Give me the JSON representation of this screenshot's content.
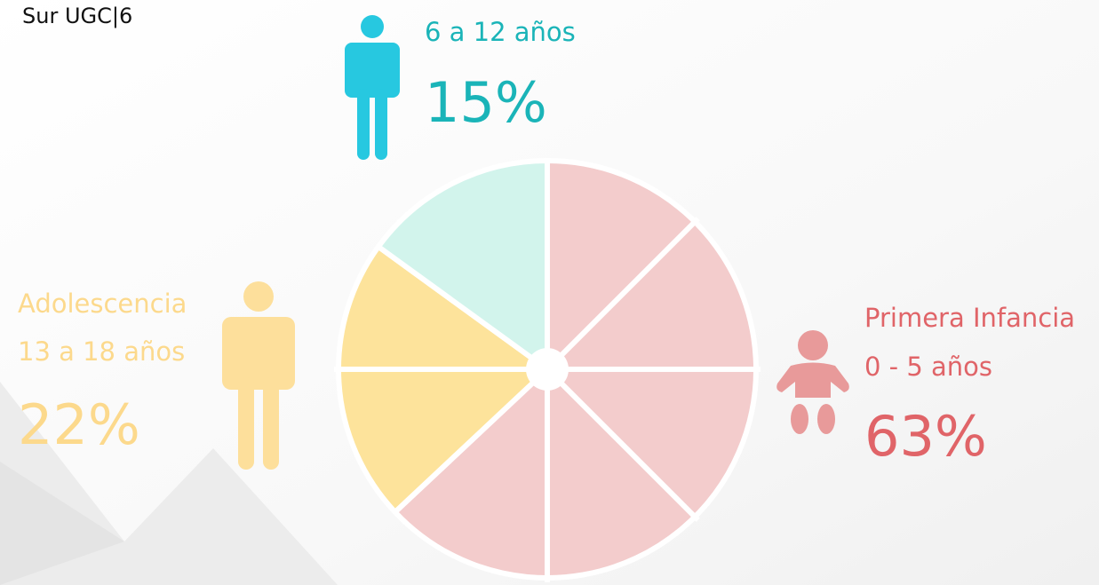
{
  "chart_data": {
    "type": "pie",
    "title": "Sur UGC|6",
    "labels": [
      [
        "Primera Infancia",
        "0 - 5 años"
      ],
      [
        "Adolescencia",
        "13 a 18 años"
      ],
      [
        "6 a 12 años"
      ]
    ],
    "values": [
      63,
      22,
      15
    ],
    "value_labels": [
      "63%",
      "22%",
      "15%"
    ],
    "colors": [
      "#f3cccc",
      "#fde39b",
      "#d2f4ec"
    ],
    "text_colors": [
      "#e06468",
      "#fcd98c",
      "#1ab4b8"
    ]
  }
}
